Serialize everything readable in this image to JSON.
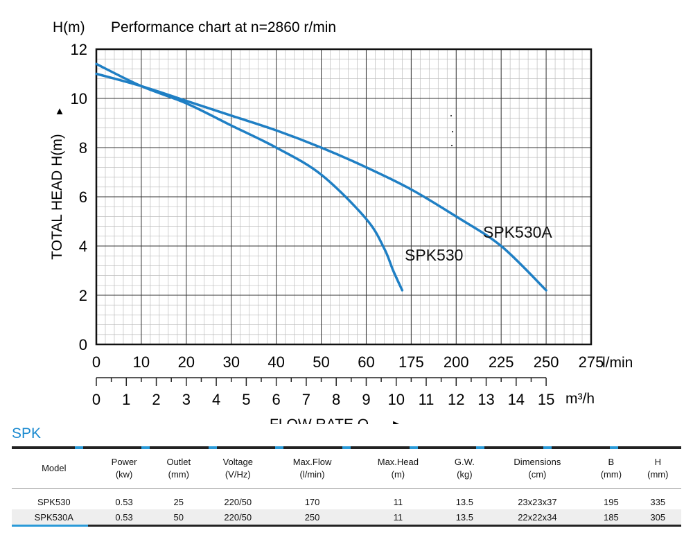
{
  "chart_data": {
    "type": "line",
    "title": "Performance chart at n=2860 r/min",
    "y_unit_label": "H(m)",
    "ylabel": "TOTAL HEAD   H(m)",
    "ylabel_arrow": "▲",
    "xlabel": "FLOW RATE Q",
    "xlabel_arrow": "►",
    "x_unit_label": "l/min",
    "x2_unit_label": "m³/h",
    "xlim": [
      0,
      275
    ],
    "ylim": [
      0,
      12
    ],
    "grid": true,
    "y_ticks": [
      "0",
      "2",
      "4",
      "6",
      "8",
      "10",
      "12"
    ],
    "x_ticks_lmin": [
      "0",
      "10",
      "20",
      "30",
      "40",
      "50",
      "60",
      "175",
      "200",
      "225",
      "250",
      "275"
    ],
    "x_ticks_m3h": [
      "0",
      "1",
      "2",
      "3",
      "4",
      "5",
      "6",
      "7",
      "8",
      "9",
      "10",
      "11",
      "12",
      "13",
      "14",
      "15"
    ],
    "series": [
      {
        "name": "SPK530",
        "color": "#1f7fc4",
        "x": [
          0,
          25,
          50,
          75,
          100,
          125,
          150,
          160,
          165,
          170
        ],
        "y": [
          11.4,
          10.5,
          9.8,
          8.9,
          8.0,
          6.9,
          5.1,
          3.9,
          3.0,
          2.2
        ]
      },
      {
        "name": "SPK530A",
        "color": "#1f7fc4",
        "x": [
          0,
          25,
          50,
          75,
          100,
          125,
          150,
          175,
          200,
          225,
          250
        ],
        "y": [
          11.0,
          10.5,
          9.9,
          9.3,
          8.7,
          8.0,
          7.2,
          6.3,
          5.2,
          4.0,
          2.2
        ]
      }
    ]
  },
  "table": {
    "name": "SPK",
    "accent_color": "#2a9ad8",
    "headers": [
      [
        "Model",
        ""
      ],
      [
        "Power",
        "(kw)"
      ],
      [
        "Outlet",
        "(mm)"
      ],
      [
        "Voltage",
        "(V/Hz)"
      ],
      [
        "Max.Flow",
        "(l/min)"
      ],
      [
        "Max.Head",
        "(m)"
      ],
      [
        "G.W.",
        "(kg)"
      ],
      [
        "Dimensions",
        "(cm)"
      ],
      [
        "B",
        "(mm)"
      ],
      [
        "H",
        "(mm)"
      ]
    ],
    "rows": [
      [
        "SPK530",
        "0.53",
        "25",
        "220/50",
        "170",
        "11",
        "13.5",
        "23x23x37",
        "195",
        "335"
      ],
      [
        "SPK530A",
        "0.53",
        "50",
        "220/50",
        "250",
        "11",
        "13.5",
        "22x22x34",
        "185",
        "305"
      ]
    ]
  }
}
